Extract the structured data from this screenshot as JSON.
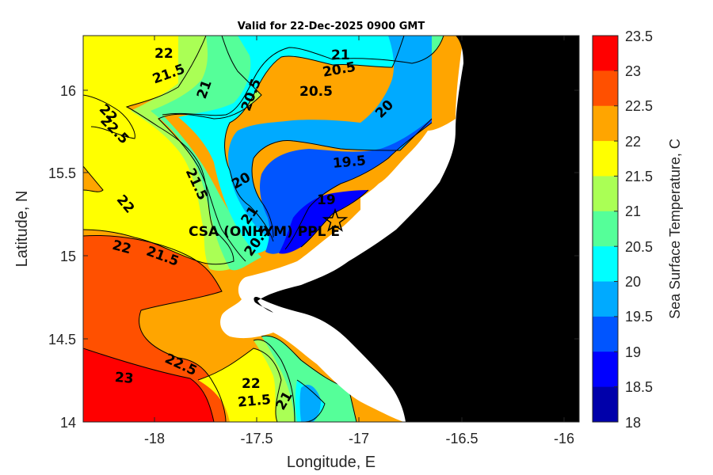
{
  "title": "Valid for 22-Dec-2025 0900 GMT",
  "x_axis": {
    "label": "Longitude, E",
    "ticks": [
      "-18",
      "-17.5",
      "-17",
      "-16.5",
      "-16"
    ]
  },
  "y_axis": {
    "label": "Latitude, N",
    "ticks": [
      "16",
      "15.5",
      "15",
      "14.5",
      "14"
    ]
  },
  "colorbar": {
    "label": "Sea Surface Temperature, C",
    "levels": [
      "23.5",
      "23",
      "22.5",
      "22",
      "21.5",
      "21",
      "20.5",
      "20",
      "19.5",
      "19",
      "18.5",
      "18"
    ],
    "band_colors": [
      "#ff0000",
      "#ff5000",
      "#ffa500",
      "#ffff00",
      "#aaff55",
      "#55ff99",
      "#00ffff",
      "#00aaff",
      "#0055ff",
      "#0000ff",
      "#0000aa"
    ]
  },
  "site": {
    "label": "CSA (ONHYM) PPL E",
    "marker": "star-icon",
    "longitude": -17.1,
    "latitude": 15.23
  },
  "contour_labels": [
    "22",
    "21.5",
    "21",
    "20.5",
    "21",
    "20.5",
    "20.5",
    "20",
    "19.5",
    "19",
    "20",
    "20.5",
    "21",
    "22",
    "22.5",
    "21.5",
    "22",
    "22",
    "21.5",
    "23",
    "22.5",
    "22",
    "21.5",
    "21"
  ],
  "chart_data": {
    "type": "heatmap",
    "title": "Valid for 22-Dec-2025 0900 GMT",
    "xlabel": "Longitude, E",
    "ylabel": "Latitude, N",
    "xlim": [
      -18.35,
      -15.92
    ],
    "ylim": [
      14,
      16.33
    ],
    "xticks": [
      -18,
      -17.5,
      -17,
      -16.5,
      -16
    ],
    "yticks": [
      14,
      14.5,
      15,
      15.5,
      16
    ],
    "colorbar_label": "Sea Surface Temperature, C",
    "clim": [
      18,
      23.5
    ],
    "contour_levels": [
      18.5,
      19,
      19.5,
      20,
      20.5,
      21,
      21.5,
      22,
      22.5,
      23
    ],
    "contour_labels": [
      {
        "text": "22",
        "lon": -17.98,
        "lat": 16.22
      },
      {
        "text": "21.5",
        "lon": -18.02,
        "lat": 16.13
      },
      {
        "text": "21",
        "lon": -17.78,
        "lat": 16.05
      },
      {
        "text": "20.5",
        "lon": -17.58,
        "lat": 16.0
      },
      {
        "text": "21",
        "lon": -17.08,
        "lat": 16.22
      },
      {
        "text": "20.5",
        "lon": -17.06,
        "lat": 16.15
      },
      {
        "text": "20.5",
        "lon": -17.2,
        "lat": 16.0
      },
      {
        "text": "20",
        "lon": -16.9,
        "lat": 15.96
      },
      {
        "text": "19.5",
        "lon": -16.98,
        "lat": 15.57
      },
      {
        "text": "19",
        "lon": -17.13,
        "lat": 15.34
      },
      {
        "text": "20",
        "lon": -17.57,
        "lat": 15.51
      },
      {
        "text": "20.5",
        "lon": -17.56,
        "lat": 15.05
      },
      {
        "text": "21",
        "lon": -17.58,
        "lat": 15.2
      },
      {
        "text": "22",
        "lon": -18.2,
        "lat": 15.91
      },
      {
        "text": "22.5",
        "lon": -18.16,
        "lat": 15.84
      },
      {
        "text": "21.5",
        "lon": -17.7,
        "lat": 15.48
      },
      {
        "text": "22",
        "lon": -18.1,
        "lat": 15.32
      },
      {
        "text": "22",
        "lon": -18.15,
        "lat": 15.05
      },
      {
        "text": "21.5",
        "lon": -17.9,
        "lat": 14.99
      },
      {
        "text": "23",
        "lon": -18.15,
        "lat": 14.26
      },
      {
        "text": "22.5",
        "lon": -17.83,
        "lat": 14.28
      },
      {
        "text": "22",
        "lon": -17.52,
        "lat": 14.22
      },
      {
        "text": "21.5",
        "lon": -17.55,
        "lat": 14.14
      },
      {
        "text": "21",
        "lon": -17.4,
        "lat": 14.14
      }
    ],
    "site": {
      "label": "CSA (ONHYM) PPL E",
      "lon": -17.1,
      "lat": 15.23
    }
  }
}
